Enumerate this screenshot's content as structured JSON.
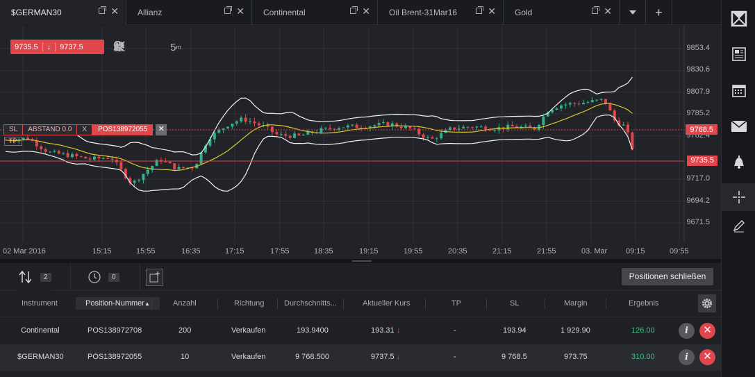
{
  "tabs": [
    {
      "label": "$GERMAN30",
      "active": true
    },
    {
      "label": "Allianz",
      "active": false
    },
    {
      "label": "Continental",
      "active": false
    },
    {
      "label": "Oil Brent-31Mar16",
      "active": false
    },
    {
      "label": "Gold",
      "active": false
    }
  ],
  "quote": {
    "sell": "9735.5",
    "buy": "9737.5"
  },
  "toolbar": {
    "timeframe": "5",
    "timeframe_unit": "m"
  },
  "chart": {
    "current_price": "9735.5",
    "position_price": "9768.5",
    "y_ticks": [
      "9853.4",
      "9830.6",
      "9807.9",
      "9785.2",
      "9762.4",
      "9717.0",
      "9694.2",
      "9671.5"
    ],
    "x_ticks": [
      "02 Mar 2016",
      "15:15",
      "15:55",
      "16:35",
      "17:15",
      "17:55",
      "18:35",
      "19:15",
      "19:55",
      "20:35",
      "21:15",
      "21:55",
      "03. Mar",
      "09:15",
      "09:55"
    ],
    "position_line": {
      "sl": "SL",
      "distance": "ABSTAND 0.0",
      "distance_value": "0.0",
      "close_x": "X",
      "tp": "TP",
      "position_id": "POS138972055"
    }
  },
  "panel": {
    "open_positions_count": "2",
    "orders_count": "0",
    "close_all_label": "Positionen schließen",
    "columns": [
      "Instrument",
      "Position-Nummer",
      "Anzahl",
      "Richtung",
      "Durchschnitts...",
      "Aktueller Kurs",
      "TP",
      "SL",
      "Margin",
      "Ergebnis"
    ],
    "rows": [
      {
        "instrument": "Continental",
        "position": "POS138972708",
        "qty": "200",
        "direction": "Verkaufen",
        "avg": "193.9400",
        "current": "193.31",
        "tp": "-",
        "sl": "193.94",
        "margin": "1 929.90",
        "result": "126.00"
      },
      {
        "instrument": "$GERMAN30",
        "position": "POS138972055",
        "qty": "10",
        "direction": "Verkaufen",
        "avg": "9 768.500",
        "current": "9737.5",
        "tp": "-",
        "sl": "9 768.5",
        "margin": "973.75",
        "result": "310.00"
      }
    ]
  },
  "colors": {
    "bull": "#2fb089",
    "bear": "#e0474c",
    "ma": "#d8c92c",
    "bands": "#f2f2f2",
    "accent": "#e0474c"
  }
}
